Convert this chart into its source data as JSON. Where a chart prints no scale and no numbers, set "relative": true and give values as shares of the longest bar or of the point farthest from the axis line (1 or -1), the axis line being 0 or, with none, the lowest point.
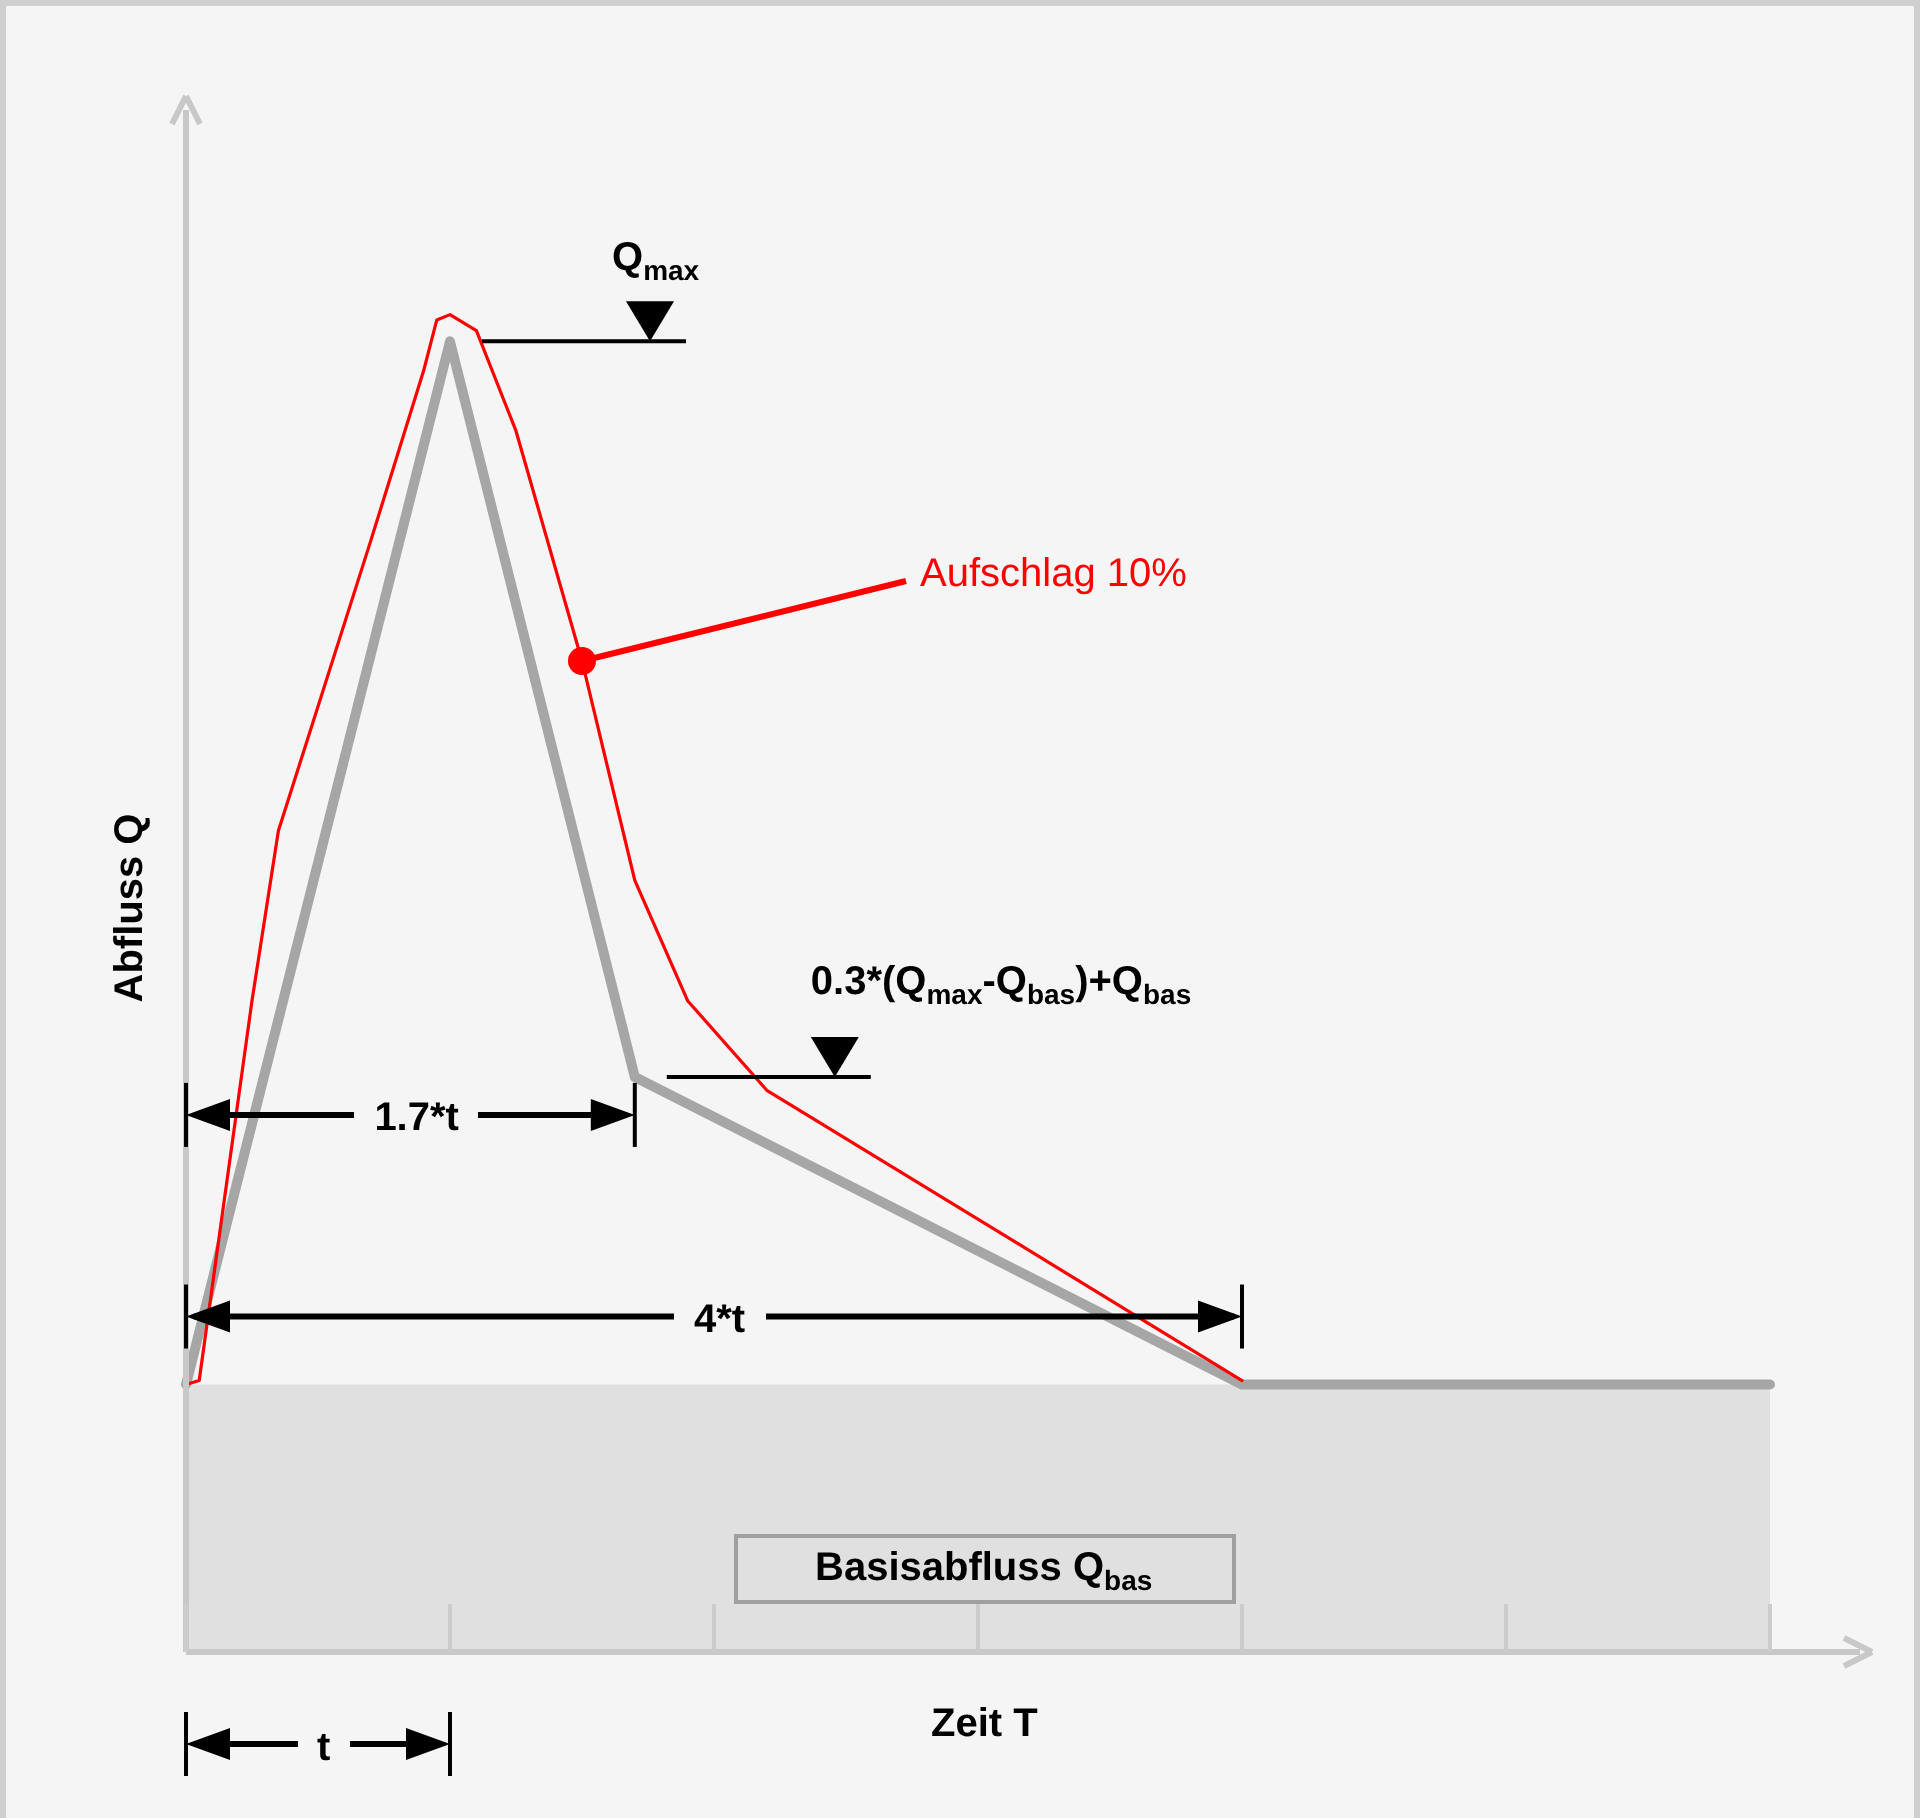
{
  "chart_data": {
    "type": "line",
    "relative": true,
    "xlabel": "Zeit T",
    "ylabel": "Abfluss Q",
    "legend": false,
    "marker": "none",
    "categories": [
      null,
      null,
      null,
      null,
      null,
      null,
      null,
      null,
      null,
      null,
      null,
      null,
      null,
      null,
      null,
      null,
      null,
      null,
      null,
      null,
      null,
      null,
      null,
      null,
      null,
      null,
      null,
      null,
      null,
      null,
      null,
      null,
      null,
      null,
      null,
      null,
      null,
      null,
      null,
      null,
      null,
      null,
      null,
      null,
      null,
      null,
      null,
      null,
      null,
      null,
      null,
      null,
      null,
      null,
      null,
      null,
      null,
      null,
      null,
      null,
      null,
      null,
      null,
      null,
      null,
      null,
      null,
      null,
      null,
      null,
      null,
      null,
      null,
      null,
      null,
      null,
      null,
      null,
      null,
      null,
      null,
      null,
      null,
      null,
      null,
      null,
      null,
      null,
      null,
      null,
      null,
      null,
      null,
      null,
      null,
      null,
      null,
      null,
      null,
      null,
      null,
      null,
      null,
      null,
      null,
      null,
      null,
      null,
      null,
      null,
      null,
      null,
      null,
      null,
      null,
      null,
      null,
      null,
      null,
      null,
      null
    ],
    "series": [
      {
        "color": "#a6a6a6",
        "values": [
          0.2,
          null,
          null,
          null,
          null,
          null,
          null,
          null,
          null,
          null,
          null,
          null,
          null,
          null,
          null,
          null,
          null,
          null,
          null,
          null,
          0.98,
          null,
          null,
          null,
          null,
          null,
          null,
          null,
          null,
          null,
          null,
          null,
          null,
          null,
          0.43,
          null,
          null,
          null,
          null,
          null,
          null,
          null,
          null,
          null,
          null,
          null,
          null,
          null,
          null,
          null,
          null,
          null,
          null,
          null,
          null,
          null,
          null,
          null,
          null,
          null,
          null,
          null,
          null,
          null,
          null,
          null,
          null,
          null,
          null,
          null,
          null,
          null,
          null,
          null,
          null,
          null,
          null,
          null,
          null,
          null,
          0.2,
          null,
          null,
          null,
          null,
          null,
          null,
          null,
          null,
          null,
          null,
          null,
          null,
          null,
          null,
          null,
          null,
          null,
          null,
          null,
          null,
          null,
          null,
          null,
          null,
          null,
          null,
          null,
          null,
          null,
          null,
          null,
          null,
          null,
          null,
          null,
          null,
          null,
          null,
          null,
          0.2
        ]
      },
      {
        "color": "#ff0000",
        "values": [
          0.2,
          0.203,
          null,
          null,
          null,
          0.487,
          null,
          0.614,
          null,
          null,
          null,
          null,
          null,
          null,
          0.831,
          null,
          null,
          null,
          0.958,
          0.996,
          1.0,
          null,
          0.988,
          null,
          null,
          0.913,
          null,
          null,
          null,
          null,
          0.741,
          null,
          null,
          null,
          0.577,
          null,
          null,
          null,
          0.487,
          null,
          null,
          null,
          null,
          null,
          0.42,
          null,
          null,
          null,
          null,
          null,
          null,
          null,
          null,
          null,
          null,
          null,
          null,
          null,
          null,
          null,
          null,
          null,
          null,
          null,
          null,
          null,
          null,
          null,
          null,
          null,
          null,
          null,
          null,
          null,
          null,
          null,
          null,
          null,
          null,
          null,
          0.203,
          null,
          null,
          null,
          null,
          null,
          null,
          null,
          null,
          null,
          null,
          null,
          null,
          null,
          null,
          null,
          null,
          null,
          null,
          null,
          null,
          null,
          null,
          null,
          null,
          null,
          null,
          null,
          null,
          null,
          null,
          null,
          null,
          null,
          null,
          null,
          null,
          null,
          null,
          null,
          null
        ]
      }
    ],
    "bands": [
      {
        "axis": "y",
        "from": 0,
        "to": 0.2,
        "label": "Basisabfluss Q$_{bas}$",
        "color": "#e0e0e0"
      }
    ],
    "annotations": [
      "Q$_{max}$",
      "Aufschlag 10%",
      "0.3*(Q$_{max}$-Q$_{bas}$)+Q$_{bas}$",
      "1.7*t",
      "4*t",
      "t"
    ]
  }
}
